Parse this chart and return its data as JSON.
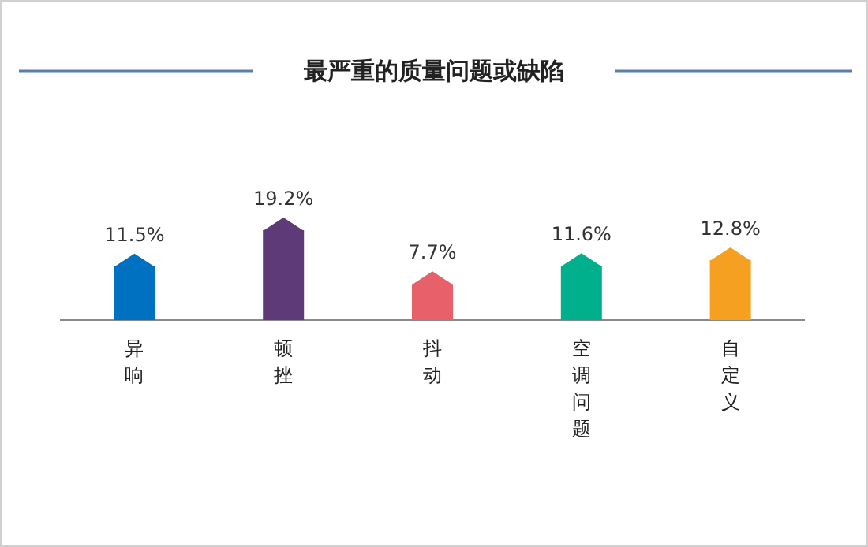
{
  "chart_data": {
    "type": "bar",
    "title": "最严重的质量问题或缺陷",
    "categories": [
      "异响",
      "顿挫",
      "抖动",
      "空调问题",
      "自定义"
    ],
    "values": [
      11.5,
      19.2,
      7.7,
      11.6,
      12.8
    ],
    "value_labels": [
      "11.5%",
      "19.2%",
      "7.7%",
      "11.6%",
      "12.8%"
    ],
    "colors": [
      "#0070c0",
      "#5f3a78",
      "#e8606a",
      "#00b08c",
      "#f5a020"
    ]
  }
}
